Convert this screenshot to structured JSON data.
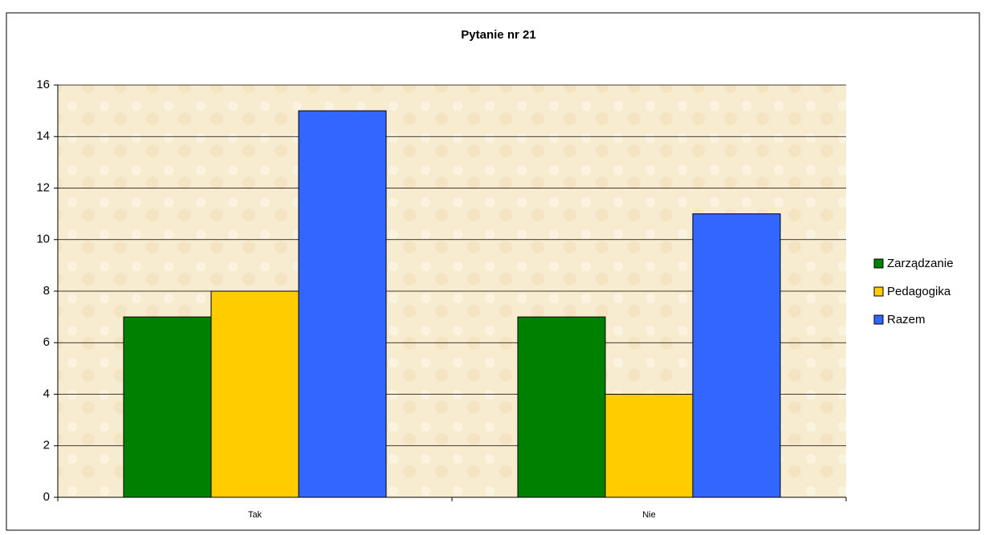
{
  "chart_data": {
    "type": "bar",
    "title": "Pytanie nr 21",
    "categories": [
      "Tak",
      "Nie"
    ],
    "series": [
      {
        "name": "Zarządzanie",
        "color": "#008000",
        "values": [
          7,
          7
        ]
      },
      {
        "name": "Pedagogika",
        "color": "#ffcc00",
        "values": [
          8,
          4
        ]
      },
      {
        "name": "Razem",
        "color": "#3366ff",
        "values": [
          15,
          11
        ]
      }
    ],
    "ylim": [
      0,
      16
    ],
    "yticks": [
      0,
      2,
      4,
      6,
      8,
      10,
      12,
      14,
      16
    ],
    "grid": true,
    "legend": "right"
  }
}
